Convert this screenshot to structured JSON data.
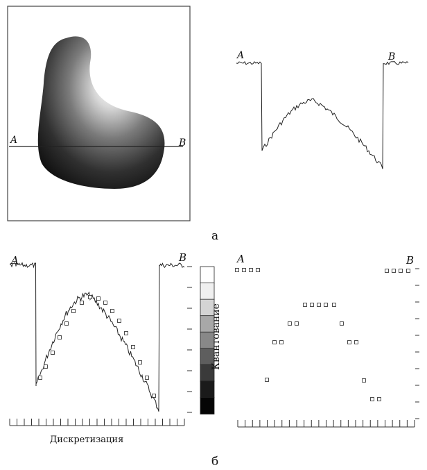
{
  "labels": {
    "point_a": "A",
    "point_b": "B",
    "panel_a_caption": "а",
    "panel_b_caption": "б",
    "sampling_label": "Дискретизация",
    "quantization_label": "Квантование"
  },
  "quantization_levels": 8,
  "sampling_ticks": 25,
  "colors": {
    "ink": "#111111",
    "background": "#ffffff"
  }
}
